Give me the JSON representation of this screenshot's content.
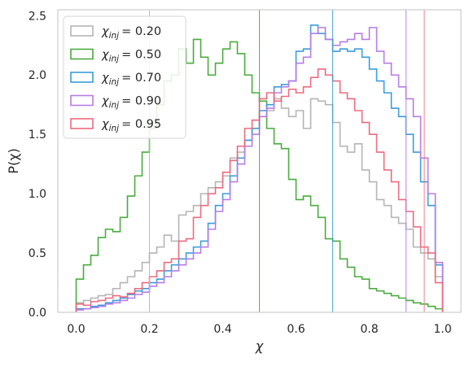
{
  "chart_data": {
    "type": "histogram",
    "xlabel": "χ",
    "ylabel": "P(χ)",
    "xlim": [
      -0.05,
      1.05
    ],
    "ylim": [
      0,
      2.55
    ],
    "xticks": [
      "0.0",
      "0.2",
      "0.4",
      "0.6",
      "0.8",
      "1.0"
    ],
    "yticks": [
      "0.0",
      "0.5",
      "1.0",
      "1.5",
      "2.0",
      "2.5"
    ],
    "grid": false,
    "legend_position": "top-left",
    "bin_edges": [
      0.0,
      0.02,
      0.04,
      0.06,
      0.08,
      0.1,
      0.12,
      0.14,
      0.16,
      0.18,
      0.2,
      0.22,
      0.24,
      0.26,
      0.28,
      0.3,
      0.32,
      0.34,
      0.36,
      0.38,
      0.4,
      0.42,
      0.44,
      0.46,
      0.48,
      0.5,
      0.52,
      0.54,
      0.56,
      0.58,
      0.6,
      0.62,
      0.64,
      0.66,
      0.68,
      0.7,
      0.72,
      0.74,
      0.76,
      0.78,
      0.8,
      0.82,
      0.84,
      0.86,
      0.88,
      0.9,
      0.92,
      0.94,
      0.96,
      0.98,
      1.0
    ],
    "series": [
      {
        "name": "χinj = 0.20",
        "label_main": "χ",
        "label_sub": "inj",
        "label_value": "= 0.20",
        "color": "#b5b5b5",
        "injected": 0.2,
        "values": [
          0.08,
          0.1,
          0.12,
          0.14,
          0.15,
          0.2,
          0.25,
          0.3,
          0.35,
          0.42,
          0.5,
          0.55,
          0.65,
          0.6,
          0.82,
          0.85,
          0.9,
          1.0,
          1.05,
          1.1,
          1.15,
          1.3,
          1.35,
          1.45,
          1.55,
          1.65,
          1.7,
          1.8,
          1.72,
          1.65,
          1.7,
          1.55,
          1.8,
          1.78,
          1.75,
          1.6,
          1.4,
          1.35,
          1.42,
          1.2,
          1.1,
          0.95,
          0.9,
          0.8,
          0.75,
          0.7,
          0.55,
          0.5,
          0.45,
          0.3
        ]
      },
      {
        "name": "χinj = 0.50",
        "label_main": "χ",
        "label_sub": "inj",
        "label_value": "= 0.50",
        "color": "#4aac3e",
        "injected": 0.5,
        "values": [
          0.28,
          0.4,
          0.48,
          0.63,
          0.7,
          0.68,
          0.8,
          0.98,
          1.15,
          1.35,
          1.55,
          1.75,
          1.95,
          2.0,
          2.22,
          2.1,
          2.3,
          2.15,
          2.0,
          2.1,
          2.22,
          2.28,
          2.18,
          2.0,
          1.85,
          1.78,
          1.55,
          1.42,
          1.38,
          1.12,
          0.95,
          0.98,
          0.9,
          0.8,
          0.62,
          0.6,
          0.45,
          0.38,
          0.3,
          0.28,
          0.2,
          0.18,
          0.16,
          0.14,
          0.12,
          0.1,
          0.08,
          0.07,
          0.05,
          0.03
        ]
      },
      {
        "name": "χinj = 0.70",
        "label_main": "χ",
        "label_sub": "inj",
        "label_value": "= 0.70",
        "color": "#3a9ddb",
        "injected": 0.7,
        "values": [
          0.03,
          0.03,
          0.05,
          0.06,
          0.08,
          0.1,
          0.12,
          0.15,
          0.18,
          0.2,
          0.25,
          0.28,
          0.35,
          0.4,
          0.45,
          0.5,
          0.55,
          0.6,
          0.75,
          0.9,
          1.0,
          1.15,
          1.3,
          1.45,
          1.55,
          1.7,
          1.75,
          1.9,
          1.92,
          1.95,
          2.2,
          2.22,
          2.42,
          2.35,
          2.3,
          2.2,
          2.22,
          2.2,
          2.22,
          2.15,
          2.05,
          1.95,
          1.85,
          1.72,
          1.65,
          1.5,
          1.35,
          1.1,
          0.9,
          0.4
        ]
      },
      {
        "name": "χinj = 0.90",
        "label_main": "χ",
        "label_sub": "inj",
        "label_value": "= 0.90",
        "color": "#b67de6",
        "injected": 0.9,
        "values": [
          0.02,
          0.03,
          0.04,
          0.05,
          0.07,
          0.08,
          0.1,
          0.12,
          0.15,
          0.17,
          0.22,
          0.25,
          0.3,
          0.35,
          0.4,
          0.45,
          0.5,
          0.55,
          0.7,
          0.85,
          0.95,
          1.1,
          1.25,
          1.4,
          1.5,
          1.65,
          1.72,
          1.85,
          1.9,
          1.95,
          2.1,
          2.15,
          2.35,
          2.4,
          2.3,
          2.25,
          2.28,
          2.3,
          2.35,
          2.3,
          2.4,
          2.2,
          2.1,
          2.0,
          1.9,
          1.8,
          1.65,
          1.3,
          1.0,
          0.42
        ]
      },
      {
        "name": "χinj = 0.95",
        "label_main": "χ",
        "label_sub": "inj",
        "label_value": "= 0.95",
        "color": "#ee6a7f",
        "injected": 0.95,
        "values": [
          0.07,
          0.06,
          0.09,
          0.1,
          0.12,
          0.14,
          0.13,
          0.16,
          0.2,
          0.25,
          0.3,
          0.35,
          0.42,
          0.45,
          0.6,
          0.62,
          0.8,
          0.9,
          1.0,
          1.05,
          1.18,
          1.28,
          1.4,
          1.55,
          1.62,
          1.8,
          1.85,
          1.78,
          1.82,
          1.88,
          1.85,
          1.9,
          1.98,
          2.05,
          2.0,
          1.95,
          1.85,
          1.8,
          1.7,
          1.6,
          1.5,
          1.35,
          1.2,
          1.1,
          0.95,
          0.85,
          0.72,
          0.55,
          0.5,
          0.25
        ]
      }
    ]
  }
}
